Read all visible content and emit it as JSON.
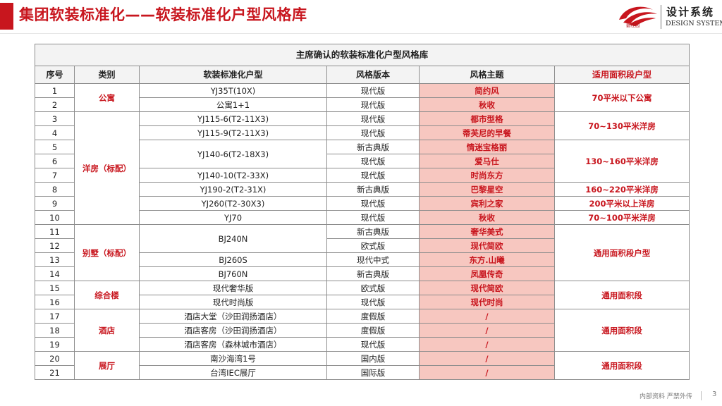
{
  "header": {
    "title": "集团软装标准化——软装标准化户型风格库",
    "brand_cn": "设计系统",
    "brand_en": "DESIGN SYSTEM",
    "brand_sub": "碧桂园"
  },
  "table": {
    "caption": "主席确认的软装标准化户型风格库",
    "columns": [
      "序号",
      "类别",
      "软装标准化户型",
      "风格版本",
      "风格主题",
      "适用面积段户型"
    ],
    "rows": [
      {
        "no": "1",
        "category": "公寓",
        "model": "YJ35T(10X)",
        "version": "现代版",
        "theme": "简约风",
        "area": "70平米以下公寓"
      },
      {
        "no": "2",
        "category": "",
        "model": "公寓1+1",
        "version": "现代版",
        "theme": "秋收",
        "area": ""
      },
      {
        "no": "3",
        "category": "洋房（标配）",
        "model": "YJ115-6(T2-11X3)",
        "version": "现代版",
        "theme": "都市型格",
        "area": "70~130平米洋房"
      },
      {
        "no": "4",
        "category": "",
        "model": "YJ115-9(T2-11X3)",
        "version": "现代版",
        "theme": "蒂芙尼的早餐",
        "area": ""
      },
      {
        "no": "5",
        "category": "",
        "model": "YJ140-6(T2-18X3)",
        "version": "新古典版",
        "theme": "情迷宝格丽",
        "area": "130~160平米洋房"
      },
      {
        "no": "6",
        "category": "",
        "model": "",
        "version": "现代版",
        "theme": "爱马仕",
        "area": ""
      },
      {
        "no": "7",
        "category": "",
        "model": "YJ140-10(T2-33X)",
        "version": "现代版",
        "theme": "时尚东方",
        "area": ""
      },
      {
        "no": "8",
        "category": "",
        "model": "YJ190-2(T2-31X)",
        "version": "新古典版",
        "theme": "巴黎星空",
        "area": "160~220平米洋房"
      },
      {
        "no": "9",
        "category": "",
        "model": "YJ260(T2-30X3)",
        "version": "现代版",
        "theme": "宾利之家",
        "area": "200平米以上洋房"
      },
      {
        "no": "10",
        "category": "",
        "model": "YJ70",
        "version": "现代版",
        "theme": "秋收",
        "area": "70~100平米洋房"
      },
      {
        "no": "11",
        "category": "别墅（标配）",
        "model": "BJ240N",
        "version": "新古典版",
        "theme": "奢华美式",
        "area": "通用面积段户型"
      },
      {
        "no": "12",
        "category": "",
        "model": "",
        "version": "欧式版",
        "theme": "现代简欧",
        "area": ""
      },
      {
        "no": "13",
        "category": "",
        "model": "BJ260S",
        "version": "现代中式",
        "theme": "东方.山曦",
        "area": ""
      },
      {
        "no": "14",
        "category": "",
        "model": "BJ760N",
        "version": "新古典版",
        "theme": "凤凰传奇",
        "area": ""
      },
      {
        "no": "15",
        "category": "综合楼",
        "model": "现代奢华版",
        "version": "欧式版",
        "theme": "现代简欧",
        "area": "通用面积段"
      },
      {
        "no": "16",
        "category": "",
        "model": "现代时尚版",
        "version": "现代版",
        "theme": "现代时尚",
        "area": ""
      },
      {
        "no": "17",
        "category": "酒店",
        "model": "酒店大堂（沙田润扬酒店）",
        "version": "度假版",
        "theme": "/",
        "area": "通用面积段"
      },
      {
        "no": "18",
        "category": "",
        "model": "酒店客房（沙田润扬酒店）",
        "version": "度假版",
        "theme": "/",
        "area": ""
      },
      {
        "no": "19",
        "category": "",
        "model": "酒店客房（森林城市酒店）",
        "version": "现代版",
        "theme": "/",
        "area": ""
      },
      {
        "no": "20",
        "category": "展厅",
        "model": "南沙海湾1号",
        "version": "国内版",
        "theme": "/",
        "area": "通用面积段"
      },
      {
        "no": "21",
        "category": "",
        "model": "台湾IEC展厅",
        "version": "国际版",
        "theme": "/",
        "area": ""
      }
    ]
  },
  "footer": {
    "note": "内部资料 严禁外传",
    "page": "3"
  },
  "colors": {
    "accent": "#c8161e",
    "highlight": "#f7c7c0",
    "header_bg": "#f3f3f3"
  }
}
